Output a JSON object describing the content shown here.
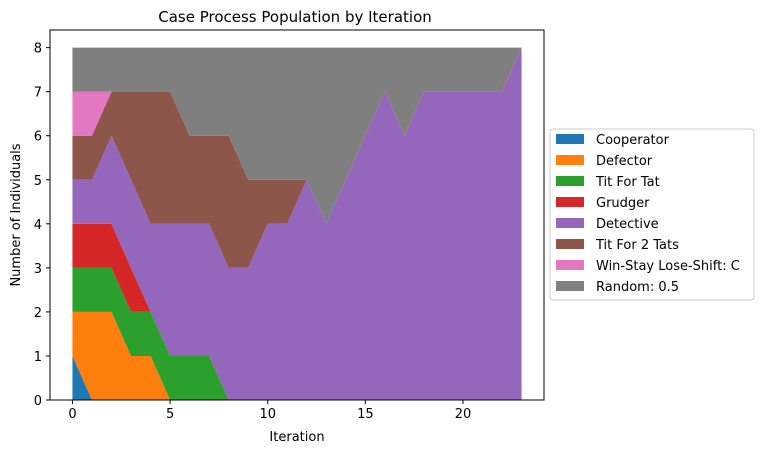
{
  "chart_data": {
    "type": "area",
    "title": "Case Process Population by Iteration",
    "xlabel": "Iteration",
    "ylabel": "Number of Individuals",
    "xlim": [
      -1.15,
      24.15
    ],
    "ylim": [
      0,
      8.4
    ],
    "xticks": [
      0,
      5,
      10,
      15,
      20
    ],
    "yticks": [
      0,
      1,
      2,
      3,
      4,
      5,
      6,
      7,
      8
    ],
    "grid": false,
    "legend_position": "right, outside plot",
    "x": [
      0,
      1,
      2,
      3,
      4,
      5,
      6,
      7,
      8,
      9,
      10,
      11,
      12,
      13,
      14,
      15,
      16,
      17,
      18,
      19,
      20,
      21,
      22,
      23
    ],
    "series": [
      {
        "name": "Cooperator",
        "color": "#1f77b4",
        "values": [
          1,
          0,
          0,
          0,
          0,
          0,
          0,
          0,
          0,
          0,
          0,
          0,
          0,
          0,
          0,
          0,
          0,
          0,
          0,
          0,
          0,
          0,
          0,
          0
        ]
      },
      {
        "name": "Defector",
        "color": "#ff7f0e",
        "values": [
          1,
          2,
          2,
          1,
          1,
          0,
          0,
          0,
          0,
          0,
          0,
          0,
          0,
          0,
          0,
          0,
          0,
          0,
          0,
          0,
          0,
          0,
          0,
          0
        ]
      },
      {
        "name": "Tit For Tat",
        "color": "#2ca02c",
        "values": [
          1,
          1,
          1,
          1,
          1,
          1,
          1,
          1,
          0,
          0,
          0,
          0,
          0,
          0,
          0,
          0,
          0,
          0,
          0,
          0,
          0,
          0,
          0,
          0
        ]
      },
      {
        "name": "Grudger",
        "color": "#d62728",
        "values": [
          1,
          1,
          1,
          1,
          0,
          0,
          0,
          0,
          0,
          0,
          0,
          0,
          0,
          0,
          0,
          0,
          0,
          0,
          0,
          0,
          0,
          0,
          0,
          0
        ]
      },
      {
        "name": "Detective",
        "color": "#9467bd",
        "values": [
          1,
          1,
          2,
          2,
          2,
          3,
          3,
          3,
          3,
          3,
          4,
          4,
          5,
          4,
          5,
          6,
          7,
          6,
          7,
          7,
          7,
          7,
          7,
          8
        ]
      },
      {
        "name": "Tit For 2 Tats",
        "color": "#8c564b",
        "values": [
          1,
          1,
          1,
          2,
          3,
          3,
          2,
          2,
          3,
          2,
          1,
          1,
          0,
          0,
          0,
          0,
          0,
          0,
          0,
          0,
          0,
          0,
          0,
          0
        ]
      },
      {
        "name": "Win-Stay Lose-Shift: C",
        "color": "#e377c2",
        "values": [
          1,
          1,
          0,
          0,
          0,
          0,
          0,
          0,
          0,
          0,
          0,
          0,
          0,
          0,
          0,
          0,
          0,
          0,
          0,
          0,
          0,
          0,
          0,
          0
        ]
      },
      {
        "name": "Random: 0.5",
        "color": "#7f7f7f",
        "values": [
          1,
          1,
          1,
          1,
          1,
          1,
          2,
          2,
          2,
          3,
          3,
          3,
          3,
          4,
          3,
          2,
          1,
          2,
          1,
          1,
          1,
          1,
          1,
          0
        ]
      }
    ]
  }
}
